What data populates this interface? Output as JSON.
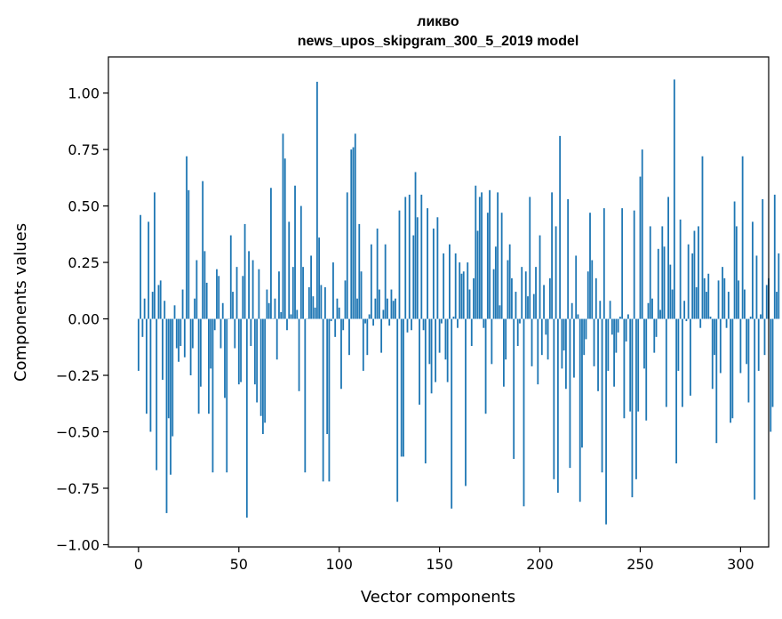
{
  "chart_data": {
    "type": "bar",
    "title": "ликво",
    "subtitle": "news_upos_skipgram_300_5_2019 model",
    "xlabel": "Vector components",
    "ylabel": "Components values",
    "xlim": [
      -15,
      314
    ],
    "ylim": [
      -1.01,
      1.16
    ],
    "xticks": [
      0,
      50,
      100,
      150,
      200,
      250,
      300
    ],
    "xtick_labels": [
      "0",
      "50",
      "100",
      "150",
      "200",
      "250",
      "300"
    ],
    "yticks": [
      -1.0,
      -0.75,
      -0.5,
      -0.25,
      0.0,
      0.25,
      0.5,
      0.75,
      1.0
    ],
    "ytick_labels": [
      "−1.00",
      "−0.75",
      "−0.50",
      "−0.25",
      "0.00",
      "0.25",
      "0.50",
      "0.75",
      "1.00"
    ],
    "color": "#1f77b4",
    "grid": false,
    "values": [
      -0.23,
      0.46,
      -0.08,
      0.09,
      -0.42,
      0.43,
      -0.5,
      0.12,
      0.56,
      -0.67,
      0.15,
      0.17,
      -0.27,
      0.08,
      -0.86,
      -0.44,
      -0.69,
      -0.52,
      0.06,
      -0.13,
      -0.19,
      -0.12,
      0.13,
      -0.17,
      0.72,
      0.57,
      -0.25,
      -0.13,
      0.09,
      0.26,
      -0.42,
      -0.3,
      0.61,
      0.3,
      0.16,
      -0.42,
      -0.22,
      -0.68,
      -0.05,
      0.22,
      0.19,
      -0.13,
      0.07,
      -0.35,
      -0.68,
      0.0,
      0.37,
      0.12,
      -0.13,
      0.23,
      -0.29,
      -0.28,
      0.19,
      0.42,
      -0.88,
      0.3,
      -0.12,
      0.26,
      -0.29,
      -0.37,
      0.22,
      -0.43,
      -0.51,
      -0.46,
      0.13,
      0.07,
      0.58,
      0.0,
      0.09,
      -0.18,
      0.21,
      0.03,
      0.82,
      0.71,
      -0.05,
      0.43,
      0.02,
      0.23,
      0.59,
      0.04,
      -0.32,
      0.5,
      0.23,
      -0.68,
      0.0,
      0.14,
      0.28,
      0.1,
      0.05,
      1.05,
      0.36,
      0.15,
      -0.72,
      0.14,
      -0.51,
      -0.72,
      -0.01,
      0.25,
      -0.08,
      0.09,
      0.05,
      -0.31,
      -0.05,
      0.17,
      0.56,
      -0.16,
      0.75,
      0.76,
      0.82,
      0.09,
      0.42,
      0.21,
      -0.23,
      -0.02,
      -0.16,
      0.02,
      0.33,
      -0.03,
      0.09,
      0.4,
      0.13,
      -0.15,
      0.04,
      0.33,
      0.09,
      -0.03,
      0.13,
      0.08,
      0.09,
      -0.81,
      0.48,
      -0.61,
      -0.61,
      0.54,
      -0.06,
      0.55,
      -0.05,
      0.37,
      0.65,
      0.45,
      -0.38,
      0.55,
      -0.05,
      -0.64,
      0.49,
      -0.2,
      -0.33,
      0.4,
      -0.28,
      0.45,
      -0.15,
      -0.02,
      0.29,
      -0.18,
      -0.28,
      0.33,
      -0.84,
      0.01,
      0.29,
      -0.04,
      0.25,
      0.2,
      0.21,
      -0.74,
      0.25,
      0.13,
      -0.12,
      0.18,
      0.59,
      0.39,
      0.54,
      0.56,
      -0.04,
      -0.42,
      0.47,
      0.57,
      -0.2,
      0.22,
      0.32,
      0.56,
      0.06,
      0.47,
      -0.3,
      -0.18,
      0.26,
      0.33,
      0.18,
      -0.62,
      0.12,
      -0.12,
      -0.02,
      0.23,
      -0.83,
      0.21,
      0.1,
      0.54,
      -0.21,
      0.11,
      0.23,
      -0.29,
      0.37,
      -0.16,
      0.15,
      -0.07,
      -0.18,
      0.18,
      0.56,
      -0.71,
      0.41,
      -0.77,
      0.81,
      -0.22,
      -0.14,
      -0.31,
      0.53,
      -0.66,
      0.07,
      -0.26,
      0.28,
      0.02,
      -0.81,
      -0.57,
      -0.16,
      -0.09,
      0.21,
      0.47,
      0.26,
      -0.21,
      0.18,
      -0.32,
      0.08,
      -0.68,
      0.49,
      -0.91,
      -0.23,
      0.08,
      -0.07,
      -0.3,
      -0.15,
      -0.06,
      0.01,
      0.49,
      -0.44,
      -0.1,
      0.02,
      -0.41,
      -0.79,
      0.48,
      -0.71,
      -0.41,
      0.63,
      0.75,
      -0.22,
      -0.45,
      0.07,
      0.41,
      0.09,
      -0.15,
      -0.08,
      0.31,
      0.04,
      0.41,
      0.32,
      -0.39,
      0.54,
      0.24,
      0.13,
      1.06,
      -0.64,
      -0.23,
      0.44,
      -0.39,
      0.08,
      -0.01,
      0.33,
      -0.34,
      0.29,
      0.39,
      0.14,
      0.41,
      -0.04,
      0.72,
      0.18,
      0.12,
      0.2,
      0.01,
      -0.31,
      -0.16,
      -0.55,
      0.17,
      -0.24,
      0.23,
      0.18,
      -0.04,
      0.12,
      -0.46,
      -0.44,
      0.52,
      0.41,
      0.17,
      -0.24,
      0.72,
      0.13,
      -0.2,
      -0.37,
      0.01,
      0.43,
      -0.8,
      0.28,
      -0.23,
      0.02,
      0.53,
      -0.16,
      0.15,
      0.18,
      -0.5,
      -0.39,
      0.55,
      0.12,
      0.29
    ]
  }
}
